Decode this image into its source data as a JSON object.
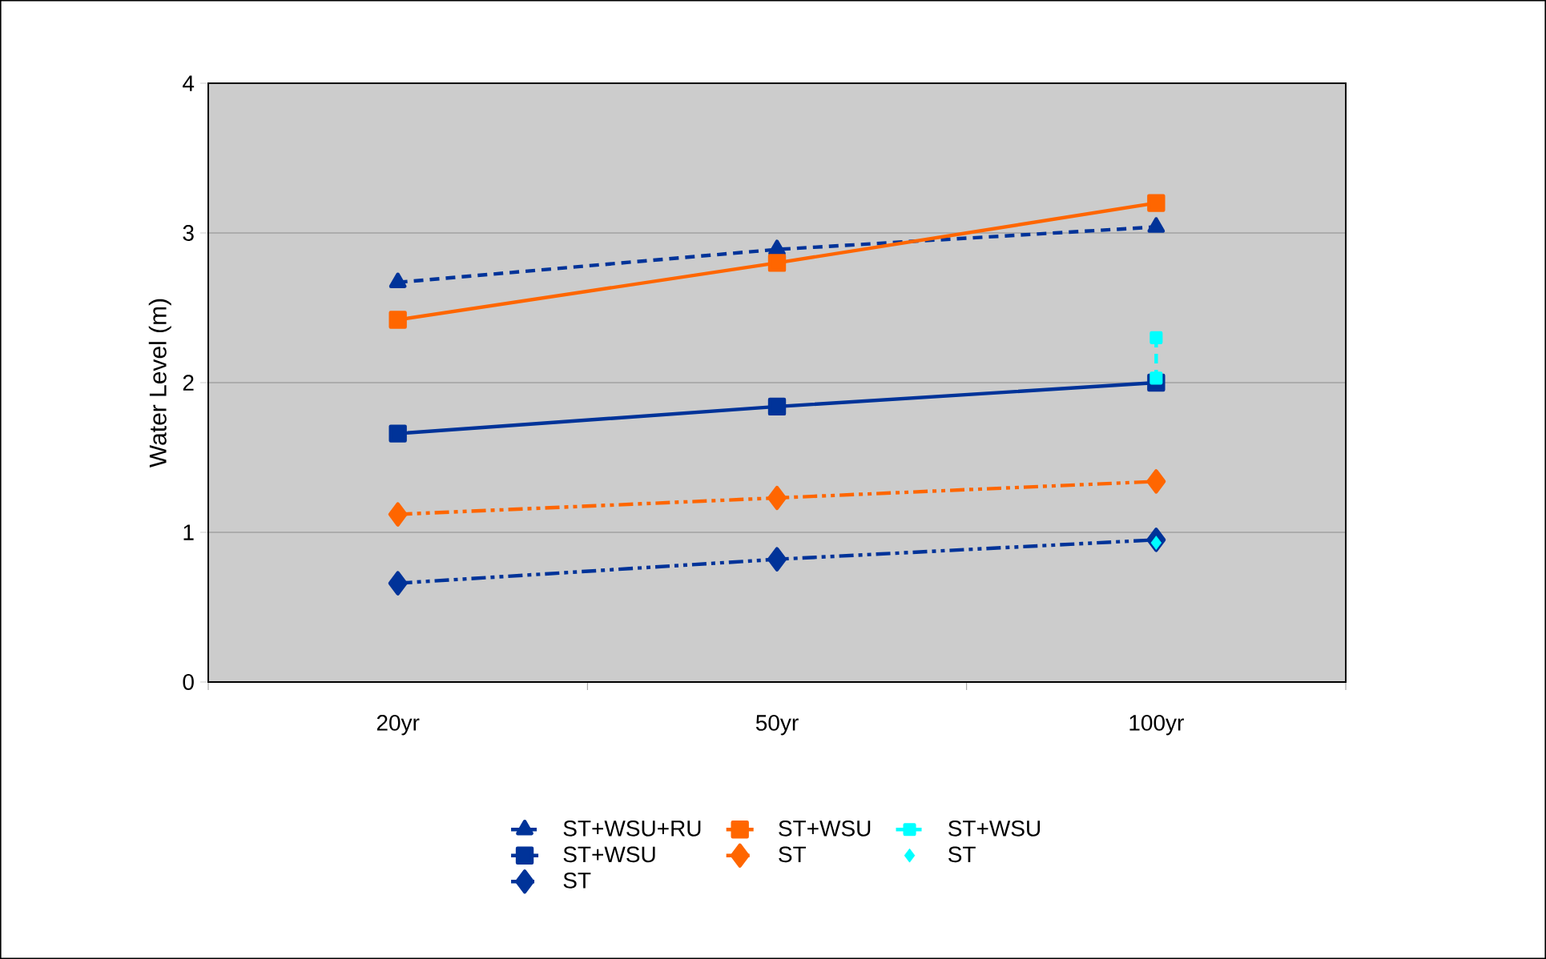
{
  "chart_data": {
    "type": "line",
    "ylabel": "Water Level (m)",
    "categories": [
      "20yr",
      "50yr",
      "100yr"
    ],
    "ylim": [
      0,
      4
    ],
    "yticks": [
      0,
      1,
      2,
      3,
      4
    ],
    "grid": "y",
    "legend": "bottom",
    "series": [
      {
        "name": "ST+WSU+RU",
        "color": "#003399",
        "values": [
          2.67,
          2.89,
          3.04
        ],
        "marker": "triangle",
        "line_style": "dashed"
      },
      {
        "name": "ST+WSU",
        "color": "#003399",
        "values": [
          1.66,
          1.84,
          2.0
        ],
        "marker": "square",
        "line_style": "solid"
      },
      {
        "name": "ST",
        "color": "#003399",
        "values": [
          0.66,
          0.82,
          0.95
        ],
        "marker": "diamond",
        "line_style": "dashdotdotted"
      },
      {
        "name": "ST+WSU",
        "color": "#ff6600",
        "values": [
          2.42,
          2.8,
          3.2
        ],
        "marker": "square",
        "line_style": "solid"
      },
      {
        "name": "ST",
        "color": "#ff6600",
        "values": [
          1.12,
          1.23,
          1.34
        ],
        "marker": "diamond",
        "line_style": "dashdotdotted"
      },
      {
        "name": "ST+WSU",
        "color": "#00ffff",
        "x": [
          "100yr",
          "100yr"
        ],
        "values": [
          2.3,
          2.03
        ],
        "marker": "square",
        "line_style": "dashed"
      },
      {
        "name": "ST",
        "type": "scatter",
        "color": "#00ffff",
        "x": [
          "100yr"
        ],
        "values": [
          0.93
        ],
        "marker": "diamond"
      }
    ]
  }
}
